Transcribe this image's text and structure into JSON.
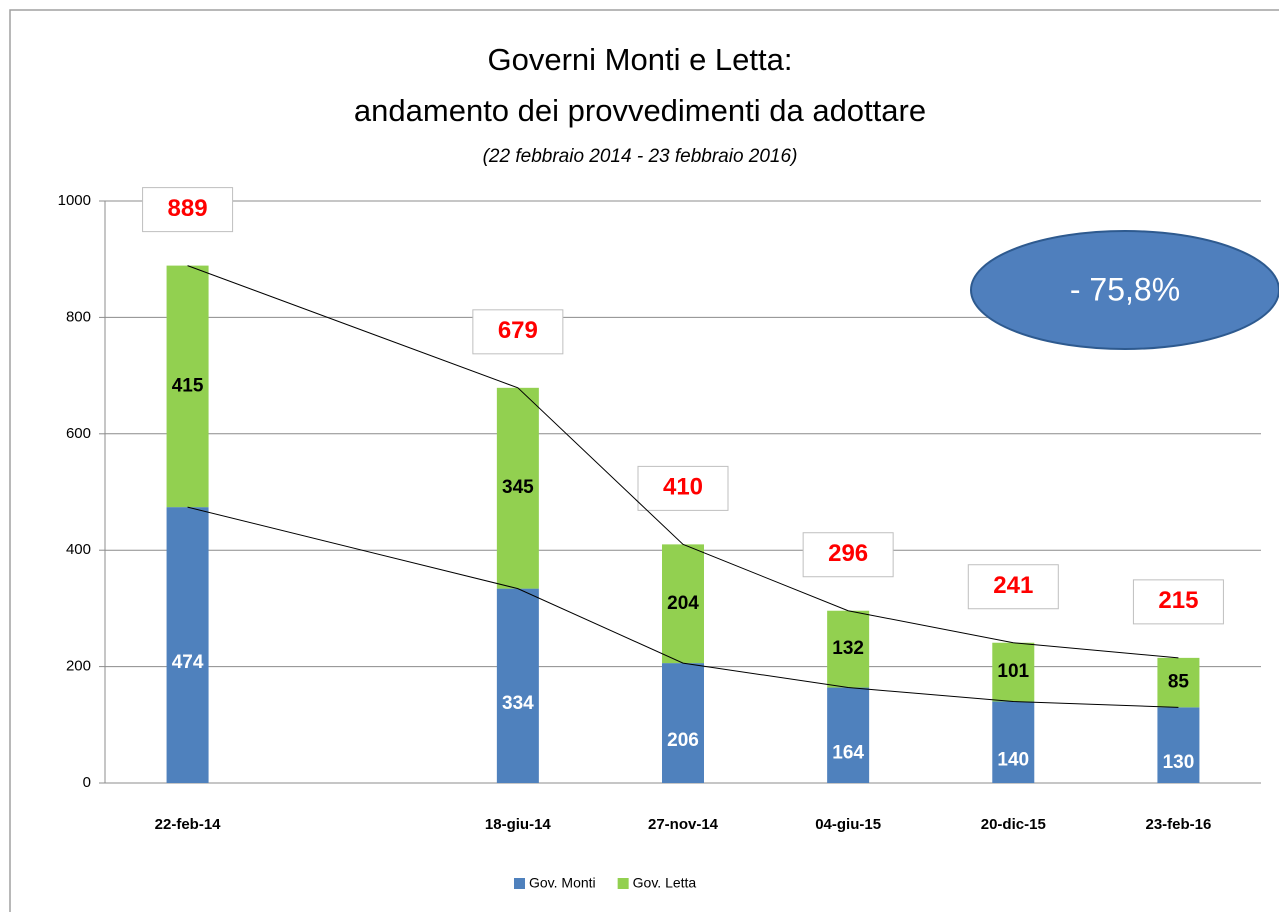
{
  "chart_data": {
    "type": "stacked_bar",
    "title": "Governi Monti e Letta:",
    "subtitle": "andamento dei provvedimenti da adottare",
    "note": "(22 febbraio 2014 - 23 febbraio 2016)",
    "annotation": "- 75,8%",
    "categories": [
      "22-feb-14",
      null,
      "18-giu-14",
      "27-nov-14",
      "04-giu-15",
      "20-dic-15",
      "23-feb-16"
    ],
    "series": [
      {
        "name": "Gov. Monti",
        "color": "#4f81bd",
        "values": [
          474,
          null,
          334,
          206,
          164,
          140,
          130
        ]
      },
      {
        "name": "Gov. Letta",
        "color": "#92d050",
        "values": [
          415,
          null,
          345,
          204,
          132,
          101,
          85
        ]
      }
    ],
    "totals": [
      889,
      null,
      679,
      410,
      296,
      241,
      215
    ],
    "total_color": "#ff0000",
    "ylim": [
      0,
      1000
    ],
    "yticks": [
      0,
      200,
      400,
      600,
      800,
      1000
    ],
    "grid": true,
    "legend": "bottom"
  }
}
